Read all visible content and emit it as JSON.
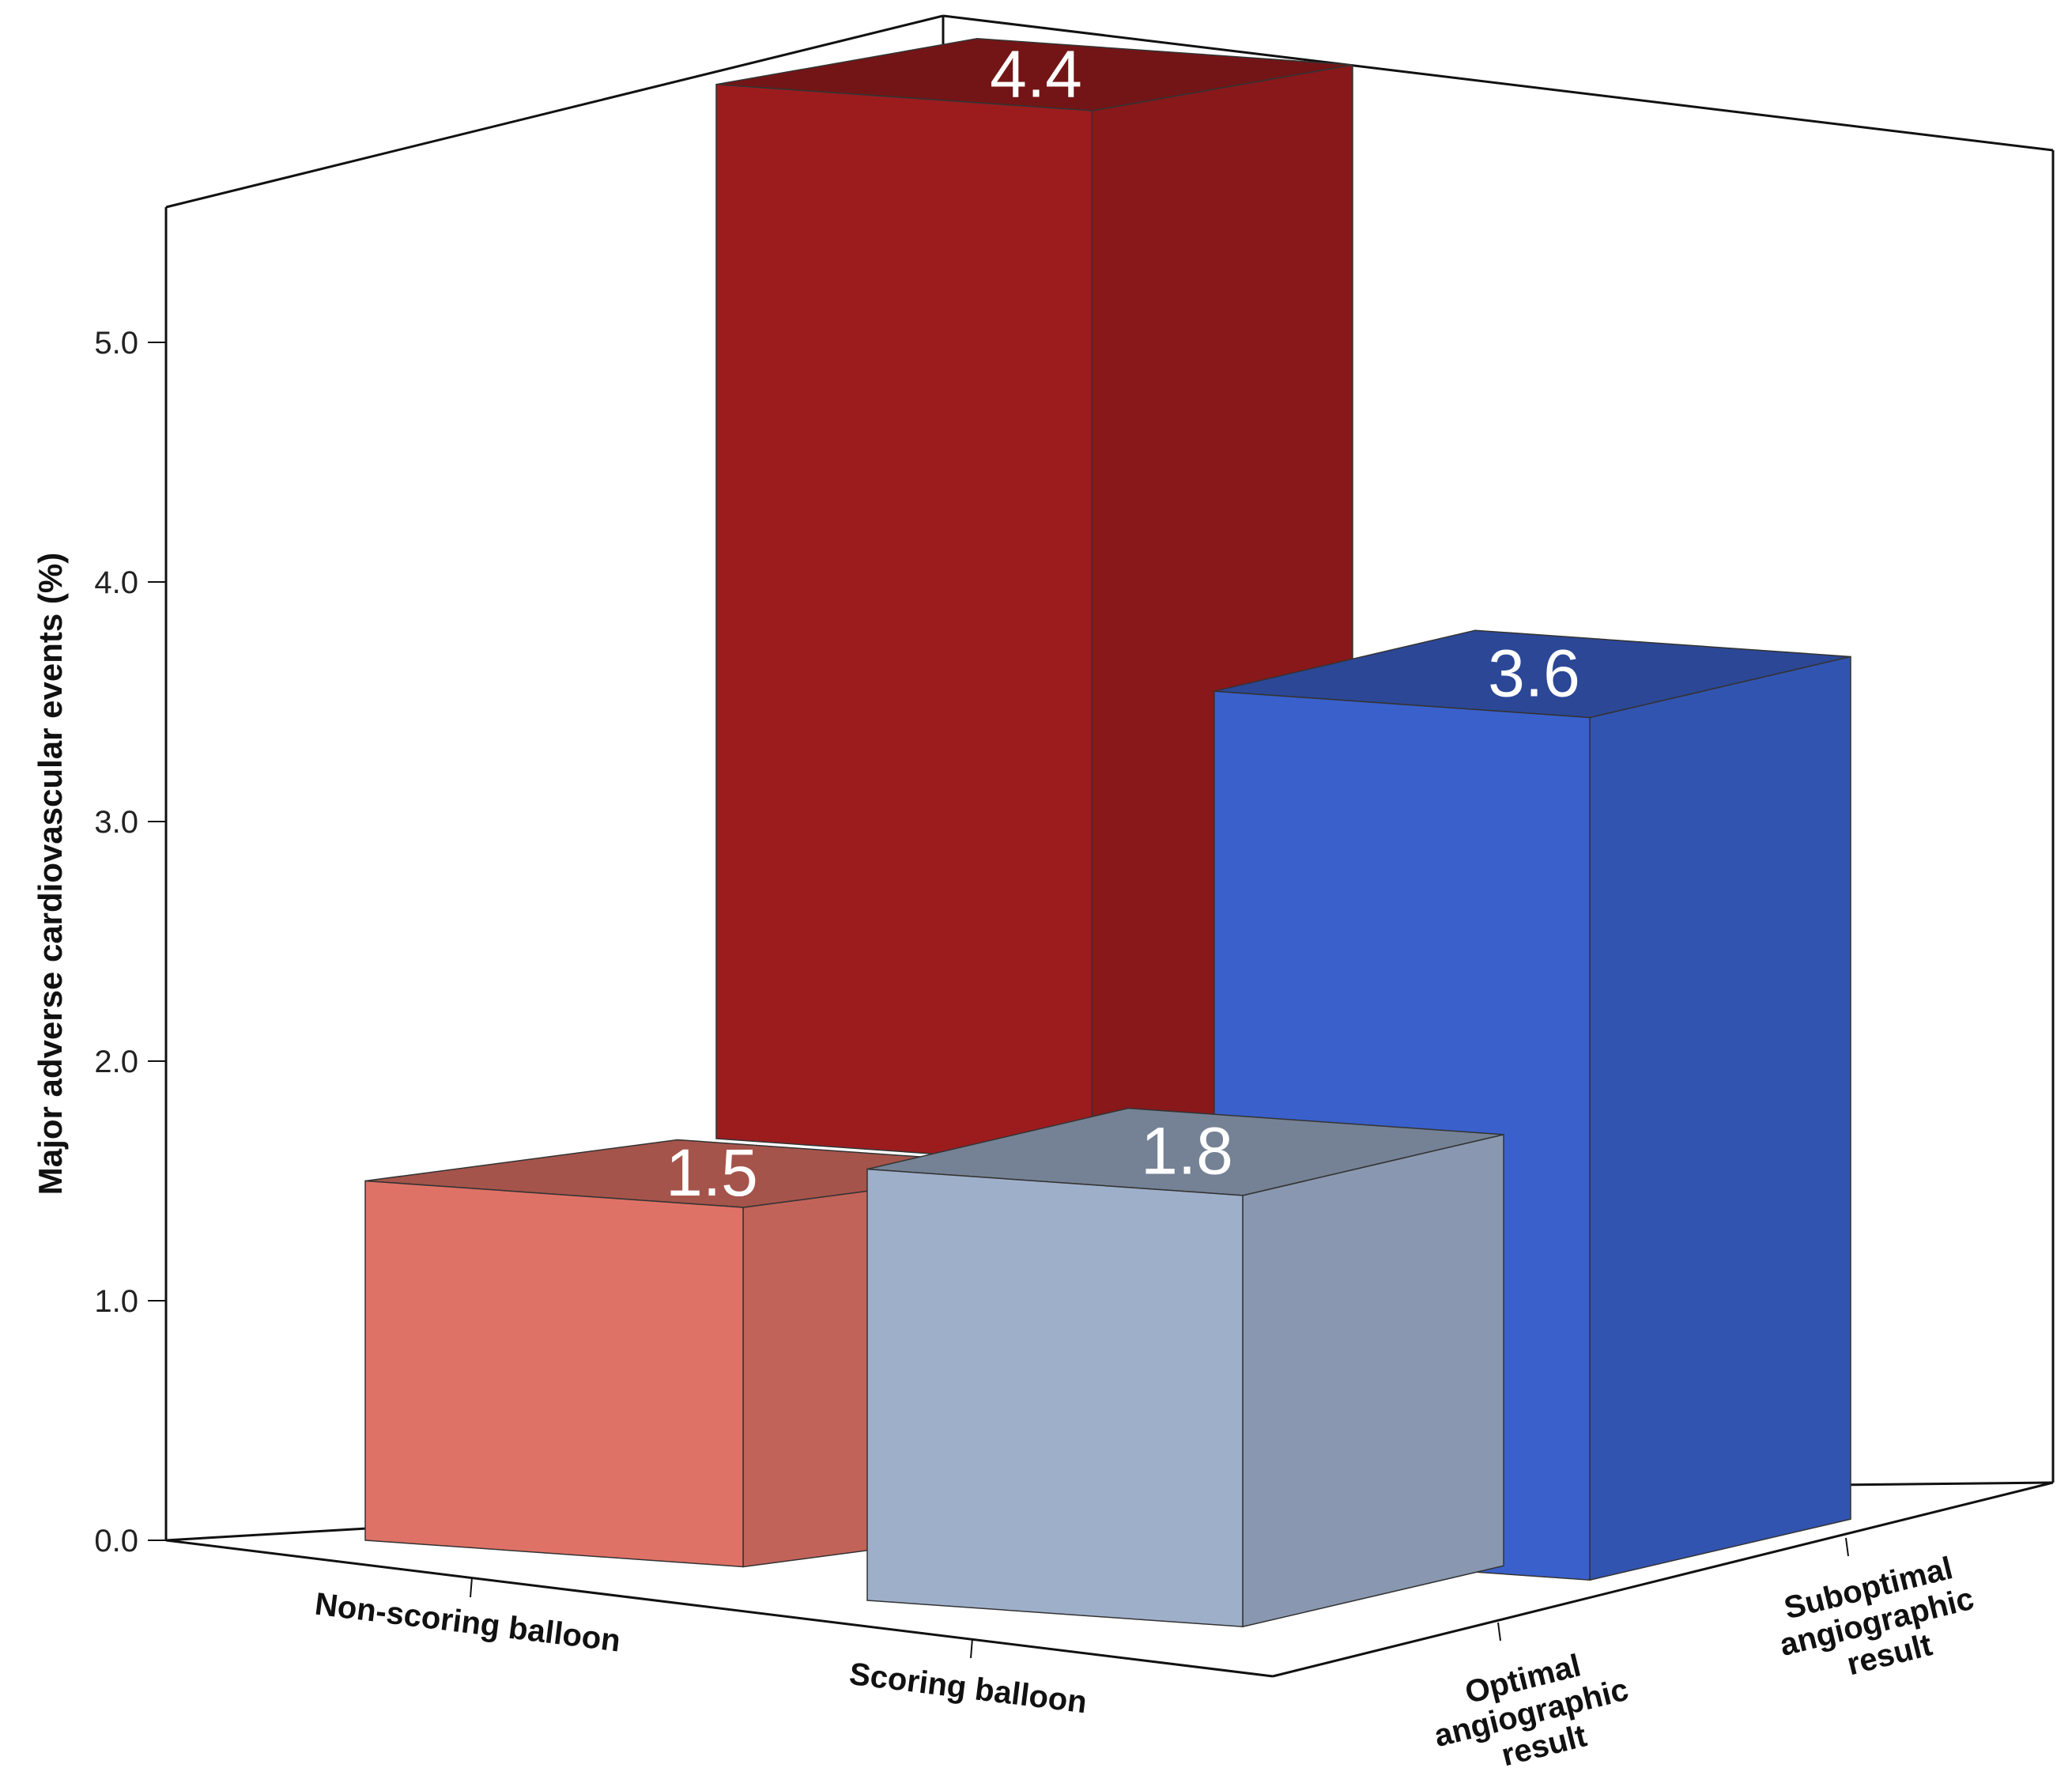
{
  "chart_data": {
    "type": "bar",
    "projection": "3d",
    "ylabel": "Major adverse cardiovascular events (%)",
    "ylim": [
      0,
      5.5
    ],
    "yticks": [
      "0.0",
      "1.0",
      "2.0",
      "3.0",
      "4.0",
      "5.0"
    ],
    "categories": [
      "Non-scoring balloon",
      "Scoring balloon"
    ],
    "depth_categories": [
      [
        "Optimal",
        "angiographic",
        "result"
      ],
      [
        "Suboptimal",
        "angiographic",
        "result"
      ]
    ],
    "series": [
      {
        "values": [
          1.5,
          4.4
        ],
        "labels": [
          "1.5",
          "4.4"
        ],
        "color_front": "#df7266",
        "color_back": "#9c1c1e"
      },
      {
        "values": [
          1.8,
          3.6
        ],
        "labels": [
          "1.8",
          "3.6"
        ],
        "color_front": "#9eafca",
        "color_back": "#3a60cb"
      }
    ],
    "grid": false
  }
}
